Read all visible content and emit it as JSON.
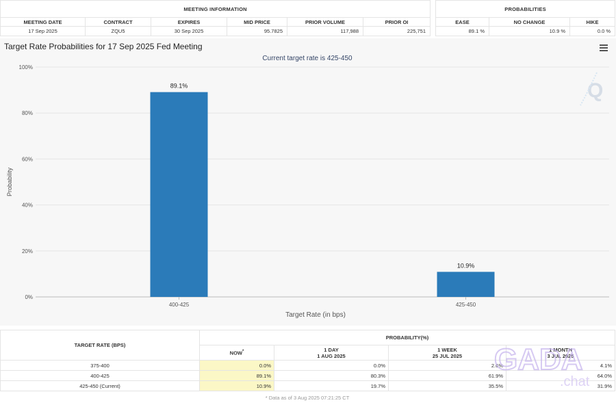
{
  "meeting_info": {
    "title": "MEETING INFORMATION",
    "headers": [
      "MEETING DATE",
      "CONTRACT",
      "EXPIRES",
      "MID PRICE",
      "PRIOR VOLUME",
      "PRIOR OI"
    ],
    "values": [
      "17 Sep 2025",
      "ZQU5",
      "30 Sep 2025",
      "95.7825",
      "117,988",
      "225,751"
    ]
  },
  "probabilities": {
    "title": "PROBABILITIES",
    "headers": [
      "EASE",
      "NO CHANGE",
      "HIKE"
    ],
    "values": [
      "89.1 %",
      "10.9 %",
      "0.0 %"
    ]
  },
  "chart_title": "Target Rate Probabilities for 17 Sep 2025 Fed Meeting",
  "chart_data": {
    "type": "bar",
    "title": "Current target rate is 425-450",
    "xlabel": "Target Rate (in bps)",
    "ylabel": "Probability",
    "categories": [
      "400-425",
      "425-450"
    ],
    "values": [
      89.1,
      10.9
    ],
    "data_labels": [
      "89.1%",
      "10.9%"
    ],
    "ylim": [
      0,
      100
    ],
    "yticks": [
      "0%",
      "20%",
      "40%",
      "60%",
      "80%",
      "100%"
    ],
    "bar_color": "#2b7bb9",
    "grid": true
  },
  "bottom_table": {
    "rate_header": "TARGET RATE (BPS)",
    "prob_header": "PROBABILITY(%)",
    "col_now": "NOW",
    "col_now_mark": "*",
    "cols": [
      {
        "label": "1 DAY",
        "date": "1 AUG 2025"
      },
      {
        "label": "1 WEEK",
        "date": "25 JUL 2025"
      },
      {
        "label": "1 MONTH",
        "date": "3 JUL 2025"
      }
    ],
    "rows": [
      {
        "rate": "375-400",
        "now": "0.0%",
        "day": "0.0%",
        "week": "2.6%",
        "month": "4.1%"
      },
      {
        "rate": "400-425",
        "now": "89.1%",
        "day": "80.3%",
        "week": "61.9%",
        "month": "64.0%"
      },
      {
        "rate": "425-450 (Current)",
        "now": "10.9%",
        "day": "19.7%",
        "week": "35.5%",
        "month": "31.9%"
      }
    ],
    "footnote": "* Data as of 3 Aug 2025 07:21:25 CT"
  },
  "watermark": {
    "line1": "GADA",
    "line2": ".chat"
  },
  "colors": {
    "accent": "#2b7bb9",
    "now_highlight": "#fbf7c6",
    "watermark": "#c9b8ee"
  },
  "icons": {
    "menu": "hamburger-menu-icon",
    "logo": "q-logo-icon"
  }
}
